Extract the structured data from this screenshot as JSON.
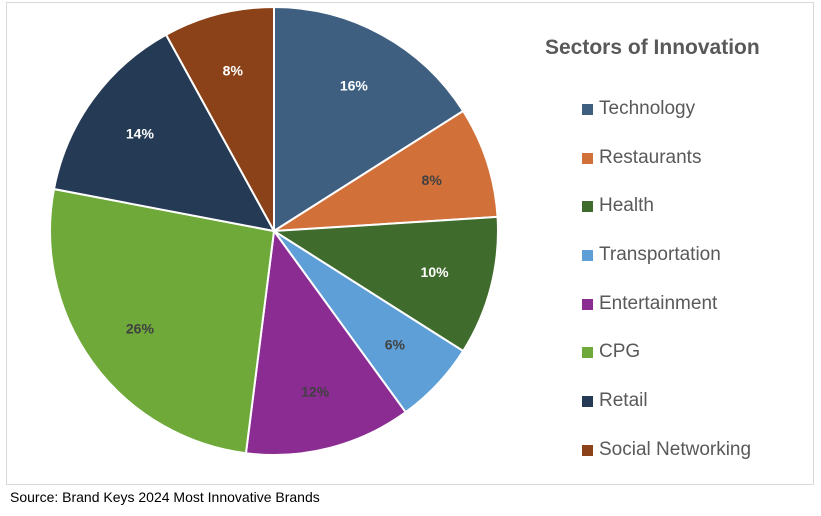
{
  "chart_data": {
    "type": "pie",
    "title": "Sectors of Innovation",
    "start_angle_deg": 0,
    "direction": "clockwise",
    "slices": [
      {
        "label": "Technology",
        "value": 16,
        "display": "16%",
        "color": "#3e5f80",
        "label_color": "#ffffff"
      },
      {
        "label": "Restaurants",
        "value": 8,
        "display": "8%",
        "color": "#d2703a",
        "label_color": "#404040"
      },
      {
        "label": "Health",
        "value": 10,
        "display": "10%",
        "color": "#3f6b2d",
        "label_color": "#ffffff"
      },
      {
        "label": "Transportation",
        "value": 6,
        "display": "6%",
        "color": "#5f9fd7",
        "label_color": "#404040"
      },
      {
        "label": "Entertainment",
        "value": 12,
        "display": "12%",
        "color": "#8b2c92",
        "label_color": "#404040"
      },
      {
        "label": "CPG",
        "value": 26,
        "display": "26%",
        "color": "#6ea93a",
        "label_color": "#404040"
      },
      {
        "label": "Retail",
        "value": 14,
        "display": "14%",
        "color": "#253a54",
        "label_color": "#ffffff"
      },
      {
        "label": "Social Networking",
        "value": 8,
        "display": "8%",
        "color": "#8c4218",
        "label_color": "#ffffff"
      }
    ],
    "legend_position": "right"
  },
  "source": "Source: Brand Keys 2024 Most Innovative Brands"
}
